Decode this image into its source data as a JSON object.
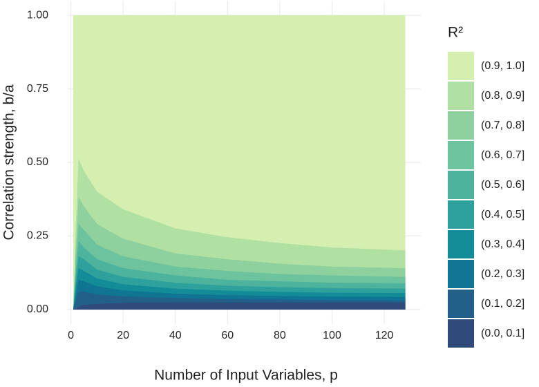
{
  "chart_data": {
    "type": "contour",
    "x_label": "Number of Input Variables, p",
    "y_label": "Correlation strength, b/a",
    "legend_title": "R²",
    "x": [
      1,
      2,
      3,
      5,
      10,
      20,
      40,
      60,
      80,
      100,
      128
    ],
    "series": [
      {
        "name": "(0.9, 1.0]",
        "color": "#d4efb0",
        "values": [
          1,
          1,
          1,
          1,
          1,
          1,
          1,
          1,
          1,
          1,
          1
        ]
      },
      {
        "name": "(0.8, 0.9]",
        "color": "#b1e1a2",
        "values": [
          0,
          0.3,
          0.51,
          0.47,
          0.4,
          0.34,
          0.275,
          0.245,
          0.225,
          0.21,
          0.2
        ]
      },
      {
        "name": "(0.7, 0.8]",
        "color": "#8fd19e",
        "values": [
          0,
          0.22,
          0.38,
          0.35,
          0.29,
          0.24,
          0.19,
          0.17,
          0.155,
          0.145,
          0.14
        ]
      },
      {
        "name": "(0.6, 0.7]",
        "color": "#6cc39d",
        "values": [
          0,
          0.17,
          0.29,
          0.27,
          0.22,
          0.18,
          0.145,
          0.13,
          0.12,
          0.115,
          0.11
        ]
      },
      {
        "name": "(0.5, 0.6]",
        "color": "#4db39d",
        "values": [
          0,
          0.13,
          0.23,
          0.21,
          0.17,
          0.14,
          0.115,
          0.1,
          0.095,
          0.09,
          0.088
        ]
      },
      {
        "name": "(0.4, 0.5]",
        "color": "#2fa19c",
        "values": [
          0,
          0.1,
          0.18,
          0.17,
          0.135,
          0.11,
          0.09,
          0.08,
          0.075,
          0.072,
          0.07
        ]
      },
      {
        "name": "(0.3, 0.4]",
        "color": "#138c98",
        "values": [
          0,
          0.08,
          0.14,
          0.13,
          0.105,
          0.085,
          0.07,
          0.063,
          0.059,
          0.056,
          0.055
        ]
      },
      {
        "name": "(0.2, 0.3]",
        "color": "#107592",
        "values": [
          0,
          0.05,
          0.1,
          0.095,
          0.078,
          0.064,
          0.053,
          0.048,
          0.045,
          0.043,
          0.042
        ]
      },
      {
        "name": "(0.1, 0.2]",
        "color": "#22608a",
        "values": [
          0,
          0.03,
          0.06,
          0.06,
          0.05,
          0.044,
          0.038,
          0.035,
          0.033,
          0.031,
          0.03
        ]
      },
      {
        "name": "(0.0, 0.1]",
        "color": "#2f4b7c",
        "values": [
          0,
          0,
          0.01,
          0.015,
          0.018,
          0.022,
          0.023,
          0.023,
          0.023,
          0.023,
          0.023
        ]
      }
    ],
    "xlim": [
      -1.2,
      134
    ],
    "ylim": [
      -0.05,
      1.05
    ],
    "xticks": [
      0,
      20,
      40,
      60,
      80,
      100,
      120
    ],
    "yticks": [
      {
        "value": 0,
        "label": "0.00"
      },
      {
        "value": 0.25,
        "label": "0.25"
      },
      {
        "value": 0.5,
        "label": "0.50"
      },
      {
        "value": 0.75,
        "label": "0.75"
      },
      {
        "value": 1,
        "label": "1.00"
      }
    ],
    "grid": true
  }
}
